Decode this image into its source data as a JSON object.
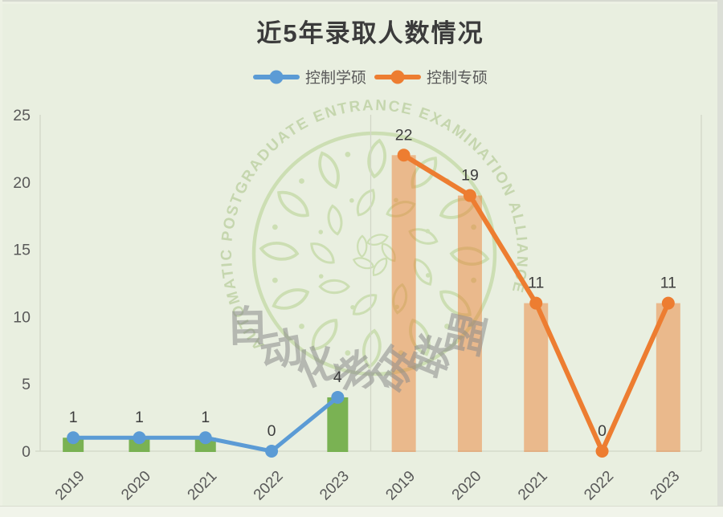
{
  "header": {
    "title": "近5年录取人数情况"
  },
  "legend": {
    "items": [
      {
        "label": "控制学硕",
        "color": "#5B9BD5"
      },
      {
        "label": "控制专硕",
        "color": "#ED7D31"
      }
    ]
  },
  "watermark": {
    "ring_text": "AUTOMATIC POSTGRADUATE ENTRANCE EXAMINATION ALLIANCE",
    "center_text": "自动化考研联盟",
    "leaf_color": "#c6dba8",
    "ring_text_color": "#bdd0a2",
    "center_text_color": "#8c8c8c"
  },
  "colors": {
    "background": "#e9efe0",
    "axis_text": "#595959",
    "data_label": "#3d3d3d",
    "gridline": "#d2d6c7"
  },
  "chart_data": {
    "type": "bar",
    "combo": "clustered bars with overlaid line+markers, two side-by-side year panels",
    "title": "近5年录取人数情况",
    "categories": [
      "2019",
      "2020",
      "2021",
      "2022",
      "2023"
    ],
    "series": [
      {
        "name": "控制学硕",
        "panel": "left",
        "values": [
          1,
          1,
          1,
          0,
          4
        ],
        "line_color": "#5B9BD5",
        "bar_color": "#70AD47",
        "bar_opacity": 0.92
      },
      {
        "name": "控制专硕",
        "panel": "right",
        "values": [
          22,
          19,
          11,
          0,
          11
        ],
        "line_color": "#ED7D31",
        "bar_color": "#ED7D31",
        "bar_opacity": 0.48
      }
    ],
    "ylim": [
      0,
      25
    ],
    "yticks": [
      0,
      5,
      10,
      15,
      20,
      25
    ],
    "grid": "vertical panel-boundary gridlines only",
    "legend_position": "top",
    "data_labels": true,
    "x_tick_rotation": -45
  }
}
